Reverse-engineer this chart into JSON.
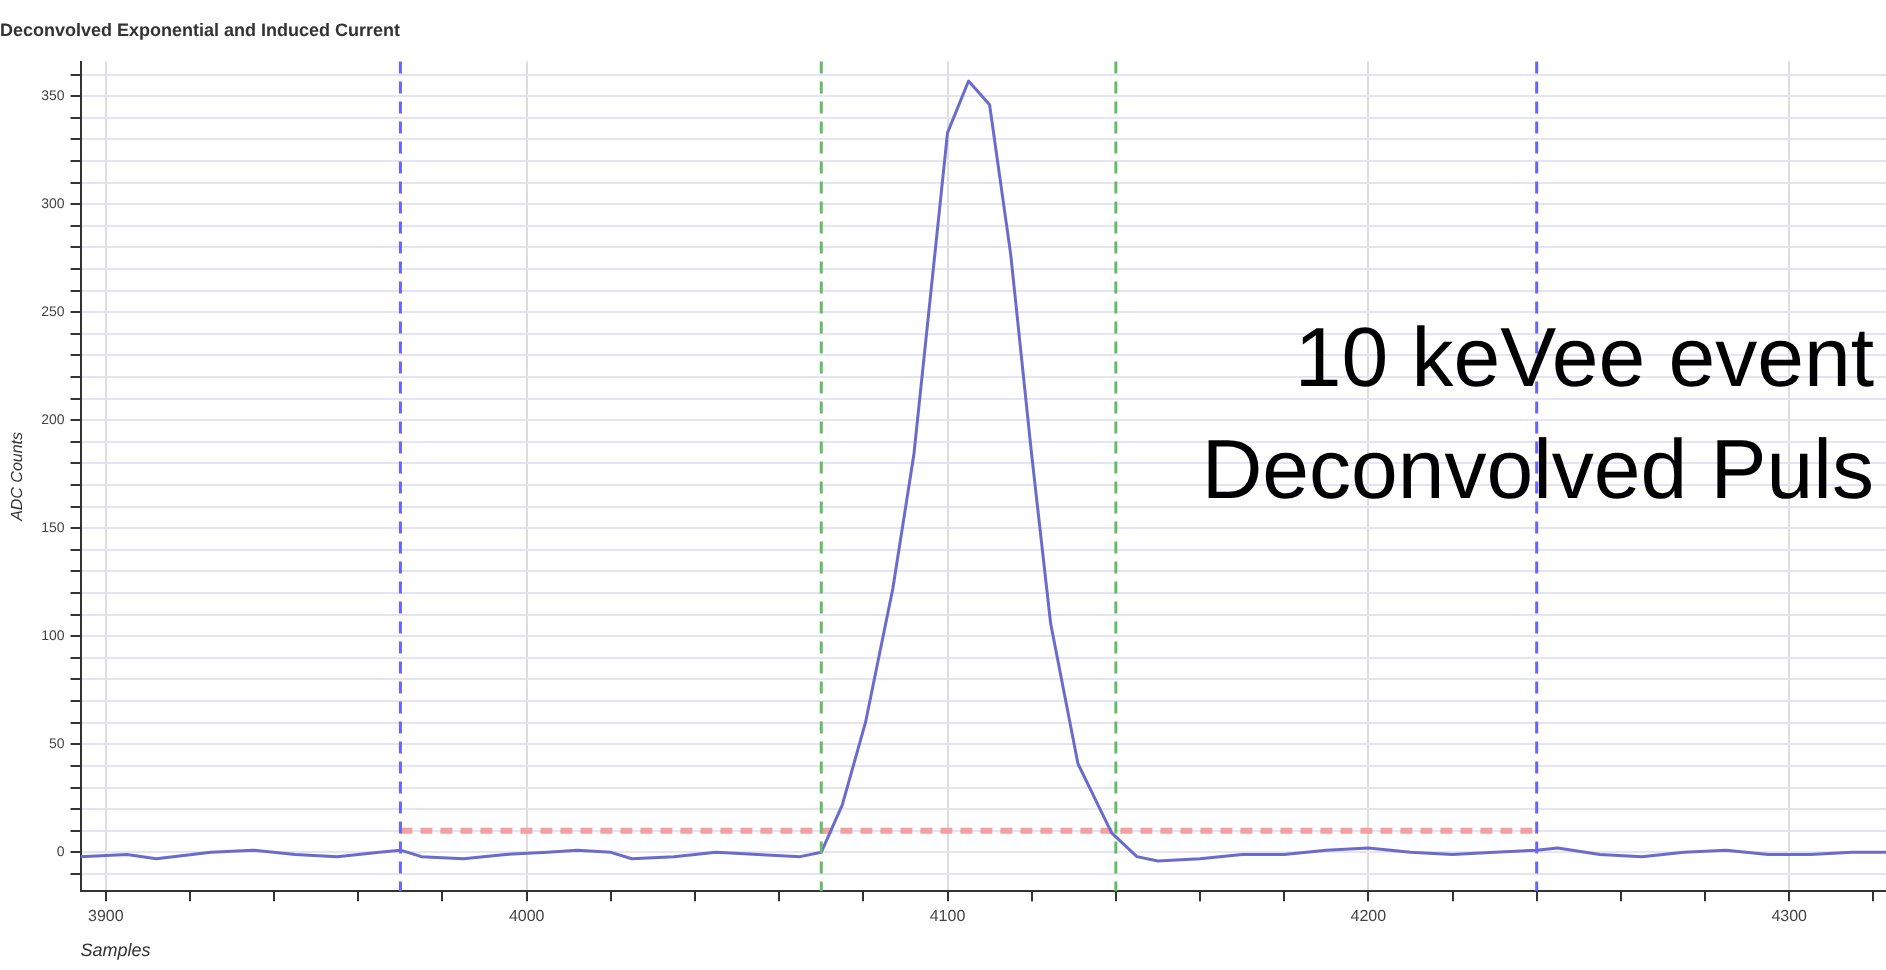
{
  "chart_data": {
    "type": "line",
    "title": "Deconvolved Exponential and Induced Current",
    "xlabel": "Samples",
    "ylabel": "ADC Counts",
    "annotations": [
      "10 keVee event",
      "Deconvolved Puls"
    ],
    "xlim": [
      3894,
      4323
    ],
    "ylim": [
      -18,
      366
    ],
    "xticks": [
      {
        "value": 3900,
        "label": "3900"
      },
      {
        "value": 3920,
        "label": null
      },
      {
        "value": 3940,
        "label": null
      },
      {
        "value": 3960,
        "label": null
      },
      {
        "value": 3980,
        "label": null
      },
      {
        "value": 4000,
        "label": "4000"
      },
      {
        "value": 4020,
        "label": null
      },
      {
        "value": 4040,
        "label": null
      },
      {
        "value": 4060,
        "label": null
      },
      {
        "value": 4080,
        "label": null
      },
      {
        "value": 4100,
        "label": "4100"
      },
      {
        "value": 4120,
        "label": null
      },
      {
        "value": 4140,
        "label": null
      },
      {
        "value": 4160,
        "label": null
      },
      {
        "value": 4180,
        "label": null
      },
      {
        "value": 4200,
        "label": "4200"
      },
      {
        "value": 4220,
        "label": null
      },
      {
        "value": 4240,
        "label": null
      },
      {
        "value": 4260,
        "label": null
      },
      {
        "value": 4280,
        "label": null
      },
      {
        "value": 4300,
        "label": "4300"
      },
      {
        "value": 4320,
        "label": null
      }
    ],
    "yticks": [
      {
        "value": -10,
        "label": null
      },
      {
        "value": 0,
        "label": "0"
      },
      {
        "value": 10,
        "label": null
      },
      {
        "value": 20,
        "label": null
      },
      {
        "value": 30,
        "label": null
      },
      {
        "value": 40,
        "label": null
      },
      {
        "value": 50,
        "label": "50"
      },
      {
        "value": 60,
        "label": null
      },
      {
        "value": 70,
        "label": null
      },
      {
        "value": 80,
        "label": null
      },
      {
        "value": 90,
        "label": null
      },
      {
        "value": 100,
        "label": "100"
      },
      {
        "value": 110,
        "label": null
      },
      {
        "value": 120,
        "label": null
      },
      {
        "value": 130,
        "label": null
      },
      {
        "value": 140,
        "label": null
      },
      {
        "value": 150,
        "label": "150"
      },
      {
        "value": 160,
        "label": null
      },
      {
        "value": 170,
        "label": null
      },
      {
        "value": 180,
        "label": null
      },
      {
        "value": 190,
        "label": null
      },
      {
        "value": 200,
        "label": "200"
      },
      {
        "value": 210,
        "label": null
      },
      {
        "value": 220,
        "label": null
      },
      {
        "value": 230,
        "label": null
      },
      {
        "value": 240,
        "label": null
      },
      {
        "value": 250,
        "label": "250"
      },
      {
        "value": 260,
        "label": null
      },
      {
        "value": 270,
        "label": null
      },
      {
        "value": 280,
        "label": null
      },
      {
        "value": 290,
        "label": null
      },
      {
        "value": 300,
        "label": "300"
      },
      {
        "value": 310,
        "label": null
      },
      {
        "value": 320,
        "label": null
      },
      {
        "value": 330,
        "label": null
      },
      {
        "value": 340,
        "label": null
      },
      {
        "value": 350,
        "label": "350"
      },
      {
        "value": 360,
        "label": null
      }
    ],
    "grid": true,
    "legend": false,
    "marker": "none",
    "line_style": "solid",
    "series": [
      {
        "color": "#6b6bcc",
        "x": [
          3894,
          3905,
          3912,
          3925,
          3935,
          3945,
          3955,
          3965,
          3970,
          3975,
          3985,
          3995,
          4005,
          4012,
          4020,
          4025,
          4035,
          4045,
          4055,
          4065,
          4070,
          4075,
          4080.5,
          4087,
          4092,
          4097,
          4100,
          4105,
          4110,
          4115,
          4120,
          4124.5,
          4131,
          4139,
          4145,
          4150,
          4160,
          4170,
          4180,
          4190,
          4200,
          4210,
          4220,
          4230,
          4240,
          4245,
          4255,
          4265,
          4275,
          4285,
          4295,
          4305,
          4315,
          4323
        ],
        "values": [
          -2,
          -1,
          -3,
          0,
          1,
          -1,
          -2,
          0,
          1,
          -2,
          -3,
          -1,
          0,
          1,
          0,
          -3,
          -2,
          0,
          -1,
          -2,
          0,
          22,
          60,
          122,
          184,
          277,
          333,
          357,
          346,
          277,
          184,
          106,
          41,
          9,
          -2,
          -4,
          -3,
          -1,
          -1,
          1,
          2,
          0,
          -1,
          0,
          1,
          2,
          -1,
          -2,
          0,
          1,
          -1,
          -1,
          0,
          0
        ]
      },
      {
        "type": "line",
        "color": "#f4a0a0",
        "line_style": "dashed",
        "x": [
          3970,
          4240
        ],
        "values": [
          10,
          10
        ]
      }
    ],
    "ref_lines": [
      {
        "axis": "x",
        "value": 3970,
        "color": "#6666ff",
        "line_style": "dashed"
      },
      {
        "axis": "x",
        "value": 4070,
        "color": "#66bb66",
        "line_style": "dashed"
      },
      {
        "axis": "x",
        "value": 4140,
        "color": "#66bb66",
        "line_style": "dashed"
      },
      {
        "axis": "x",
        "value": 4240,
        "color": "#6666ff",
        "line_style": "dashed"
      }
    ]
  }
}
